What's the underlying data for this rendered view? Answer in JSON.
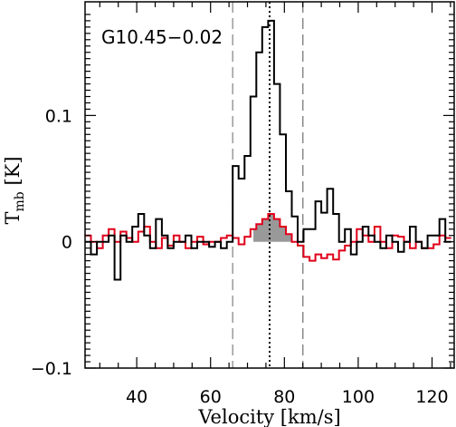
{
  "chart_data": {
    "type": "line",
    "title": "",
    "annotation": "G10.45−0.02",
    "xlabel": "Velocity [km/s]",
    "ylabel_main": "T",
    "ylabel_sub": "mb",
    "ylabel_unit": " [K]",
    "xlim": [
      26,
      126
    ],
    "ylim": [
      -0.1,
      0.19
    ],
    "xticks": [
      40,
      60,
      80,
      100,
      120
    ],
    "xtick_labels": [
      "40",
      "60",
      "80",
      "100",
      "120"
    ],
    "yticks": [
      -0.1,
      0,
      0.1
    ],
    "ytick_labels": [
      "−0.1",
      "0",
      "0.1"
    ],
    "grid": false,
    "vlines": [
      {
        "x": 66,
        "style": "dashed",
        "color": "#999999"
      },
      {
        "x": 85,
        "style": "dashed",
        "color": "#888888"
      },
      {
        "x": 76,
        "style": "dotted",
        "color": "#000000"
      }
    ],
    "series": [
      {
        "color": "#000000",
        "step": 1.6,
        "x": [
          26,
          27.6,
          29.2,
          30.8,
          32.4,
          34.0,
          35.6,
          37.2,
          38.8,
          40.4,
          42.0,
          43.6,
          45.2,
          46.8,
          48.4,
          50.0,
          51.6,
          53.2,
          54.8,
          56.4,
          58.0,
          59.6,
          61.2,
          62.8,
          64.4,
          66.0,
          67.6,
          69.2,
          70.8,
          72.4,
          74.0,
          75.6,
          77.2,
          78.8,
          80.4,
          82.0,
          83.6,
          85.2,
          86.8,
          88.4,
          90.0,
          91.6,
          93.2,
          94.8,
          96.4,
          98.0,
          99.6,
          101.2,
          102.8,
          104.4,
          106.0,
          107.6,
          109.2,
          110.8,
          112.4,
          114.0,
          115.6,
          117.2,
          118.8,
          120.4,
          122.0,
          123.6
        ],
        "y": [
          0.0,
          -0.01,
          0.0,
          0.0,
          0.005,
          -0.03,
          0.005,
          0.0,
          0.012,
          0.022,
          0.005,
          -0.005,
          0.018,
          0.005,
          -0.005,
          0.0,
          0.0,
          0.005,
          -0.005,
          0.0,
          0.0,
          -0.004,
          0.0,
          -0.005,
          0.0,
          0.06,
          0.05,
          0.068,
          0.115,
          0.15,
          0.17,
          0.175,
          0.125,
          0.085,
          0.04,
          0.02,
          0.0,
          0.01,
          0.01,
          0.032,
          0.023,
          0.042,
          0.022,
          0.0,
          0.01,
          -0.01,
          0.0,
          0.012,
          0.005,
          0.0,
          -0.005,
          0.005,
          0.0,
          -0.008,
          0.0,
          0.012,
          0.0,
          -0.005,
          0.005,
          0.005,
          0.018,
          0.0
        ]
      },
      {
        "color": "#e0001a",
        "step": 1.6,
        "x": [
          26,
          27.6,
          29.2,
          30.8,
          32.4,
          34.0,
          35.6,
          37.2,
          38.8,
          40.4,
          42.0,
          43.6,
          45.2,
          46.8,
          48.4,
          50.0,
          51.6,
          53.2,
          54.8,
          56.4,
          58.0,
          59.6,
          61.2,
          62.8,
          64.4,
          66.0,
          67.6,
          69.2,
          70.8,
          72.4,
          74.0,
          75.6,
          77.2,
          78.8,
          80.4,
          82.0,
          83.6,
          85.2,
          86.8,
          88.4,
          90.0,
          91.6,
          93.2,
          94.8,
          96.4,
          98.0,
          99.6,
          101.2,
          102.8,
          104.4,
          106.0,
          107.6,
          109.2,
          110.8,
          112.4,
          114.0,
          115.6,
          117.2,
          118.8,
          120.4,
          122.0,
          123.6
        ],
        "y": [
          0.005,
          0.0,
          -0.005,
          0.005,
          0.01,
          0.0,
          0.008,
          0.003,
          0.0,
          0.008,
          0.012,
          0.0,
          -0.005,
          0.003,
          -0.003,
          0.005,
          0.0,
          -0.005,
          0.0,
          0.004,
          -0.002,
          0.0,
          0.0,
          0.003,
          0.005,
          0.003,
          -0.002,
          0.004,
          0.01,
          0.014,
          0.018,
          0.022,
          0.018,
          0.012,
          0.006,
          0.0,
          -0.003,
          -0.012,
          -0.015,
          -0.01,
          -0.013,
          -0.01,
          -0.014,
          -0.007,
          -0.003,
          0.0,
          0.01,
          0.005,
          0.0,
          0.012,
          0.0,
          -0.005,
          0.005,
          0.004,
          0.0,
          -0.005,
          0.0,
          -0.005,
          -0.005,
          -0.002,
          0.005,
          0.003
        ]
      }
    ],
    "shaded_region": {
      "color": "#999999",
      "x_from": 71.6,
      "x_to": 82.0
    }
  }
}
